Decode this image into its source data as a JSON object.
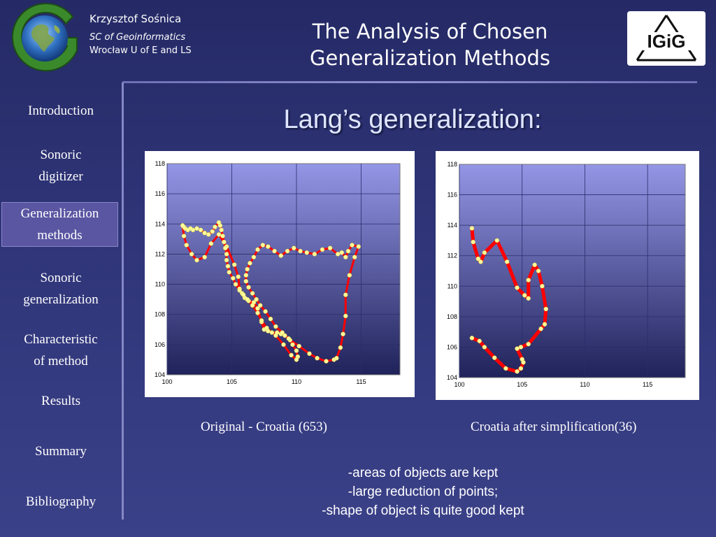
{
  "header": {
    "author_name": "Krzysztof Sośnica",
    "department": "SC of Geoinformatics",
    "university": "Wrocław U of E and LS",
    "title_line1": "The Analysis of Chosen",
    "title_line2": "Generalization Methods",
    "logo_text": "IGiG",
    "logo_letter": "G"
  },
  "sidebar": {
    "items": [
      {
        "line1": "Introduction",
        "line2": ""
      },
      {
        "line1": "Sonoric",
        "line2": "digitizer"
      },
      {
        "line1": "Generalization",
        "line2": "methods"
      },
      {
        "line1": "Sonoric",
        "line2": "generalization"
      },
      {
        "line1": "Characteristic",
        "line2": "of method"
      },
      {
        "line1": "Results",
        "line2": ""
      },
      {
        "line1": "Summary",
        "line2": ""
      },
      {
        "line1": "Bibliography",
        "line2": ""
      }
    ],
    "active_index": 2
  },
  "main": {
    "heading": "Lang’s generalization:",
    "caption_left": "Original  - Croatia (653)",
    "caption_right": "Croatia after simplification(36)",
    "notes": [
      "-areas of objects are kept",
      "-large reduction of points;",
      "-shape of object is quite good kept"
    ]
  },
  "colors": {
    "plot_top": "#9496e6",
    "plot_bottom": "#20225a",
    "line": "#ff0000",
    "marker": "#ffff99"
  },
  "chart_data": [
    {
      "type": "scatter",
      "title": "",
      "xlim": [
        100,
        118
      ],
      "ylim": [
        104,
        118
      ],
      "xticks": [
        100,
        105,
        110,
        115
      ],
      "yticks": [
        104,
        106,
        108,
        110,
        112,
        114,
        116,
        118
      ],
      "x": [
        101.2,
        101.3,
        101.5,
        101.9,
        102.3,
        102.9,
        103.4,
        104.0,
        104.6,
        105.2,
        105.5,
        105.6,
        105.8,
        106.0,
        106.3,
        106.7,
        107.0,
        107.3,
        107.5,
        107.8,
        108.1,
        108.5,
        108.8,
        109.1,
        109.5,
        110.2,
        111.0,
        111.6,
        112.3,
        112.9,
        113.1,
        113.4,
        113.6,
        113.8,
        113.8,
        114.1,
        114.5,
        114.8,
        114.3,
        114.0,
        113.8,
        113.5,
        113.2,
        112.6,
        112.0,
        111.4,
        110.8,
        110.3,
        109.8,
        109.3,
        108.8,
        108.3,
        107.8,
        107.4,
        107.0,
        106.7,
        106.4,
        106.2,
        106.1,
        106.1,
        106.3,
        106.6,
        106.9,
        107.2,
        107.6,
        108.0,
        108.4,
        108.9,
        109.4,
        109.7,
        110.0,
        110.1,
        110.0,
        109.6,
        109.0,
        108.4,
        107.7,
        107.3,
        107.0,
        106.6,
        106.2,
        105.9,
        105.6,
        105.3,
        105.1,
        104.8,
        104.7,
        104.6,
        104.6,
        104.5,
        104.4,
        104.3,
        104.2,
        104.1,
        104.0,
        103.7,
        103.5,
        103.2,
        102.9,
        102.6,
        102.3,
        102.0,
        101.8,
        101.6,
        101.4,
        101.3,
        101.2
      ],
      "y": [
        113.9,
        113.2,
        112.6,
        112.0,
        111.6,
        111.8,
        112.7,
        113.3,
        112.5,
        111.3,
        110.5,
        109.7,
        109.4,
        109.1,
        108.9,
        108.8,
        108.4,
        107.5,
        107.0,
        106.9,
        106.8,
        106.8,
        106.7,
        106.6,
        106.3,
        105.9,
        105.4,
        105.1,
        104.9,
        105.0,
        105.1,
        105.8,
        106.7,
        107.9,
        109.3,
        110.6,
        111.8,
        112.5,
        112.6,
        112.2,
        111.8,
        112.1,
        112.0,
        112.4,
        112.3,
        112.0,
        112.1,
        112.2,
        112.4,
        112.2,
        111.9,
        112.2,
        112.5,
        112.6,
        112.3,
        111.8,
        111.4,
        111.0,
        110.6,
        110.2,
        109.8,
        109.4,
        109.0,
        108.6,
        108.2,
        107.7,
        107.2,
        106.8,
        106.4,
        106.0,
        105.6,
        105.2,
        105.0,
        105.3,
        106.0,
        106.6,
        107.1,
        107.6,
        108.1,
        108.6,
        109.0,
        109.3,
        109.6,
        110.0,
        110.4,
        110.8,
        111.2,
        111.6,
        112.0,
        112.4,
        112.8,
        113.2,
        113.6,
        113.9,
        114.1,
        113.8,
        113.5,
        113.3,
        113.4,
        113.6,
        113.7,
        113.6,
        113.7,
        113.6,
        113.7,
        113.8,
        113.9
      ]
    },
    {
      "type": "line",
      "title": "",
      "xlim": [
        100,
        118
      ],
      "ylim": [
        104,
        118
      ],
      "xticks": [
        100,
        105,
        110,
        115
      ],
      "yticks": [
        104,
        106,
        108,
        110,
        112,
        114,
        116,
        118
      ],
      "x": [
        101.0,
        101.1,
        101.5,
        101.7,
        102.0,
        103.0,
        103.8,
        104.6,
        105.2,
        105.5,
        105.5,
        106.0,
        106.3,
        106.6,
        106.9,
        106.8,
        106.5,
        105.5,
        104.9,
        104.6,
        105.0,
        105.1,
        104.9,
        104.6,
        103.7,
        102.8,
        102.0,
        101.6,
        101.0
      ],
      "y": [
        113.8,
        112.9,
        111.8,
        111.6,
        112.2,
        113.0,
        111.6,
        109.9,
        109.4,
        109.2,
        110.4,
        111.4,
        111.0,
        110.0,
        108.5,
        107.5,
        107.2,
        106.2,
        106.0,
        105.9,
        105.2,
        105.0,
        104.6,
        104.4,
        104.6,
        105.3,
        106.0,
        106.4,
        106.6
      ]
    }
  ]
}
